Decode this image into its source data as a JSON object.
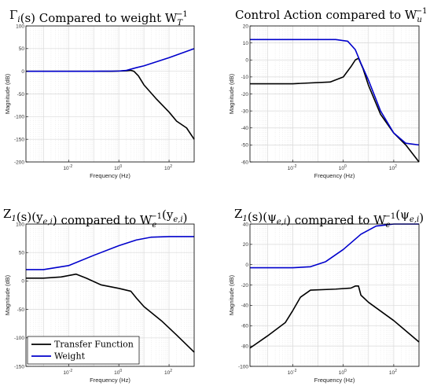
{
  "figure": {
    "grid": true,
    "x_log_scale": true,
    "colors": {
      "transfer_function": "#000000",
      "weight": "#0000cc",
      "grid": "#d9d9d9",
      "axes": "#000000"
    }
  },
  "chart_data": [
    {
      "type": "line",
      "title_parts": [
        [
          "Γ",
          "i",
          ""
        ],
        [
          "(s) Compared to weight W",
          "T",
          "−1"
        ]
      ],
      "xlabel": "Frequency  (Hz)",
      "ylabel": "Magnitude (dB)",
      "xlim": [
        0.0002,
        1000
      ],
      "ylim": [
        -200,
        100
      ],
      "yticks": [
        100,
        50,
        0,
        -50,
        -100,
        -150,
        -200
      ],
      "xticks": [
        {
          "v": 0.01,
          "exp": "-2"
        },
        {
          "v": 1,
          "exp": "0"
        },
        {
          "v": 100,
          "exp": "2"
        }
      ],
      "series": [
        {
          "name": "Transfer Function",
          "color": "#000000",
          "x": [
            0.0002,
            0.01,
            0.5,
            2,
            3,
            4,
            6,
            10,
            30,
            100,
            200,
            500,
            1000
          ],
          "y": [
            0,
            0,
            0,
            1,
            2,
            0,
            -10,
            -30,
            -60,
            -90,
            -110,
            -125,
            -150
          ]
        },
        {
          "name": "Weight",
          "color": "#0000cc",
          "x": [
            0.0002,
            0.1,
            1,
            2,
            5,
            10,
            100,
            1000
          ],
          "y": [
            0,
            0,
            0.5,
            2,
            8,
            12,
            30,
            50
          ]
        }
      ]
    },
    {
      "type": "line",
      "title_parts": [
        [
          "Control Action compared to W",
          "u",
          "−1"
        ]
      ],
      "xlabel": "Frequency  (Hz)",
      "ylabel": "Magnitude (dB)",
      "xlim": [
        0.0002,
        1000
      ],
      "ylim": [
        -60,
        20
      ],
      "yticks": [
        20,
        10,
        0,
        -10,
        -20,
        -30,
        -40,
        -50,
        -60
      ],
      "xticks": [
        {
          "v": 0.01,
          "exp": "-2"
        },
        {
          "v": 1,
          "exp": "0"
        },
        {
          "v": 100,
          "exp": "2"
        }
      ],
      "series": [
        {
          "name": "Transfer Function",
          "color": "#000000",
          "x": [
            0.0002,
            0.01,
            0.3,
            1,
            2,
            3,
            4,
            6,
            10,
            30,
            100,
            300,
            1000
          ],
          "y": [
            -14,
            -14,
            -13,
            -10,
            -4,
            0,
            1,
            -5,
            -15,
            -32,
            -43,
            -50,
            -60
          ]
        },
        {
          "name": "Weight",
          "color": "#0000cc",
          "x": [
            0.0002,
            0.5,
            1.5,
            3,
            5,
            10,
            30,
            100,
            300,
            1000
          ],
          "y": [
            12,
            12,
            11,
            6,
            -2,
            -12,
            -30,
            -43,
            -49,
            -50
          ]
        }
      ]
    },
    {
      "type": "line",
      "title_parts": [
        [
          "Z",
          "1",
          ""
        ],
        [
          "(s)(y",
          "e,i",
          ""
        ],
        [
          ") compared to W",
          "e",
          "−1"
        ],
        [
          "(y",
          "e,i",
          ""
        ],
        [
          ")",
          "",
          ""
        ]
      ],
      "xlabel": "Frequency  (Hz)",
      "ylabel": "Magnitude (dB)",
      "xlim": [
        0.0002,
        1000
      ],
      "ylim": [
        -150,
        100
      ],
      "yticks": [
        100,
        50,
        0,
        -50,
        -100,
        -150
      ],
      "xticks": [
        {
          "v": 0.01,
          "exp": "-2"
        },
        {
          "v": 1,
          "exp": "0"
        },
        {
          "v": 100,
          "exp": "2"
        }
      ],
      "legend": {
        "location": "bottom-left",
        "entries": [
          "Transfer Function",
          "Weight"
        ]
      },
      "series": [
        {
          "name": "Transfer Function",
          "color": "#000000",
          "x": [
            0.0002,
            0.001,
            0.005,
            0.02,
            0.05,
            0.2,
            1,
            3,
            5,
            10,
            50,
            200,
            1000
          ],
          "y": [
            5,
            5,
            7,
            12,
            5,
            -7,
            -13,
            -18,
            -30,
            -45,
            -70,
            -95,
            -125
          ]
        },
        {
          "name": "Weight",
          "color": "#0000cc",
          "x": [
            0.0002,
            0.001,
            0.01,
            0.1,
            1,
            5,
            20,
            100,
            1000
          ],
          "y": [
            20,
            20,
            27,
            45,
            62,
            72,
            77,
            78,
            78
          ]
        }
      ]
    },
    {
      "type": "line",
      "title_parts": [
        [
          "Z",
          "1",
          ""
        ],
        [
          "(s)(ψ",
          "e,i",
          ""
        ],
        [
          ") compared to W",
          "e",
          "−1"
        ],
        [
          "(ψ",
          "e,i",
          ""
        ],
        [
          ")",
          "",
          ""
        ]
      ],
      "xlabel": "Frequency  (Hz)",
      "ylabel": "Magnitude (dB)",
      "xlim": [
        0.0002,
        1000
      ],
      "ylim": [
        -100,
        40
      ],
      "yticks": [
        40,
        20,
        0,
        -20,
        -40,
        -60,
        -80,
        -100
      ],
      "xticks": [
        {
          "v": 0.01,
          "exp": "-2"
        },
        {
          "v": 1,
          "exp": "0"
        },
        {
          "v": 100,
          "exp": "2"
        }
      ],
      "series": [
        {
          "name": "Transfer Function",
          "color": "#000000",
          "x": [
            0.0002,
            0.001,
            0.005,
            0.01,
            0.02,
            0.05,
            0.5,
            2,
            3,
            4,
            5,
            10,
            100,
            1000
          ],
          "y": [
            -82,
            -70,
            -57,
            -45,
            -32,
            -25,
            -24,
            -23,
            -21,
            -21,
            -30,
            -37,
            -55,
            -76
          ]
        },
        {
          "name": "Weight",
          "color": "#0000cc",
          "x": [
            0.0002,
            0.01,
            0.05,
            0.2,
            1,
            5,
            20,
            100,
            1000
          ],
          "y": [
            -3,
            -3,
            -2,
            3,
            15,
            30,
            38,
            40,
            40
          ]
        }
      ]
    }
  ]
}
